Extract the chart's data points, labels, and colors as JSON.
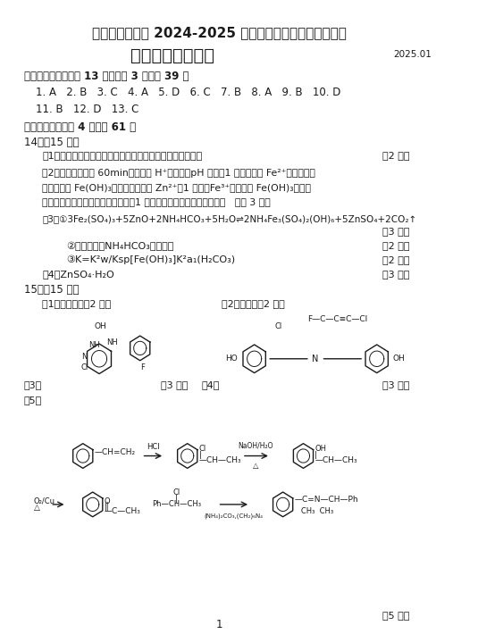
{
  "title1": "盐城市、南京市 2024-2025 学年度第一学期期末调研测试",
  "title2": "高三化学参考答案",
  "date": "2025.01",
  "section1_header": "一、单项选择题：共 13 题，每题 3 分，共 39 分",
  "answers_row1": "1. A   2. B   3. C   4. A   5. D   6. C   7. B   8. A   9. B   10. D",
  "answers_row2": "11. B   12. D   13. C",
  "section2_header": "二、非选择题：共 4 题，共 61 分",
  "q14_header": "14．（15 分）",
  "q14_1": "（1）增大与酸接触面积，加快反应速率，提高锌矿浸浸出率",
  "q14_1_score": "（2 分）",
  "q14_2a": "（2）浸出时间超过 60min，溶液中 H⁺被消耗、pH 升高（1 分），随着 Fe²⁺水解程度增",
  "q14_2b": "大，生成的 Fe(OH)₃胶体吸附溶液中 Zn²⁺（1 分）；Fe³⁺还可生成 Fe(OH)₃沉淀，",
  "q14_2c": "附着在锌矿矿渣表面阻碍锌的浸出（1 分），使滤液中锌质量分数升高   （共 3 分）",
  "q14_3a": "（3）①3Fe₂(SO₄)₃+5ZnO+2NH₄HCO₃+5H₂O⇌2NH₄Fe₃(SO₄)₂(OH)₆+5ZnSO₄+2CO₂↑",
  "q14_3a_score": "（3 分）",
  "q14_3b": "②温度过高，NH₄HCO₃受热分解",
  "q14_3b_score": "（2 分）",
  "q14_3c": "③K=K²w/Ksp[Fe(OH)₃]K²a₁(H₂CO₃)",
  "q14_3c_score": "（2 分）",
  "q14_4": "（4）ZnSO₄·H₂O",
  "q14_4_score": "（3 分）",
  "q15_header": "15．（15 分）",
  "q15_1": "（1）取代反应（2 分）",
  "q15_2": "（2）酰胺基（2 分）",
  "q15_3_label": "（3）",
  "q15_3_score": "（3 分）",
  "q15_4_label": "（4）",
  "q15_4_score": "（3 分）",
  "q15_5_label": "（5）",
  "q15_5_score": "（5 分）",
  "page_num": "1",
  "bg_color": "#ffffff",
  "text_color": "#1a1a1a"
}
